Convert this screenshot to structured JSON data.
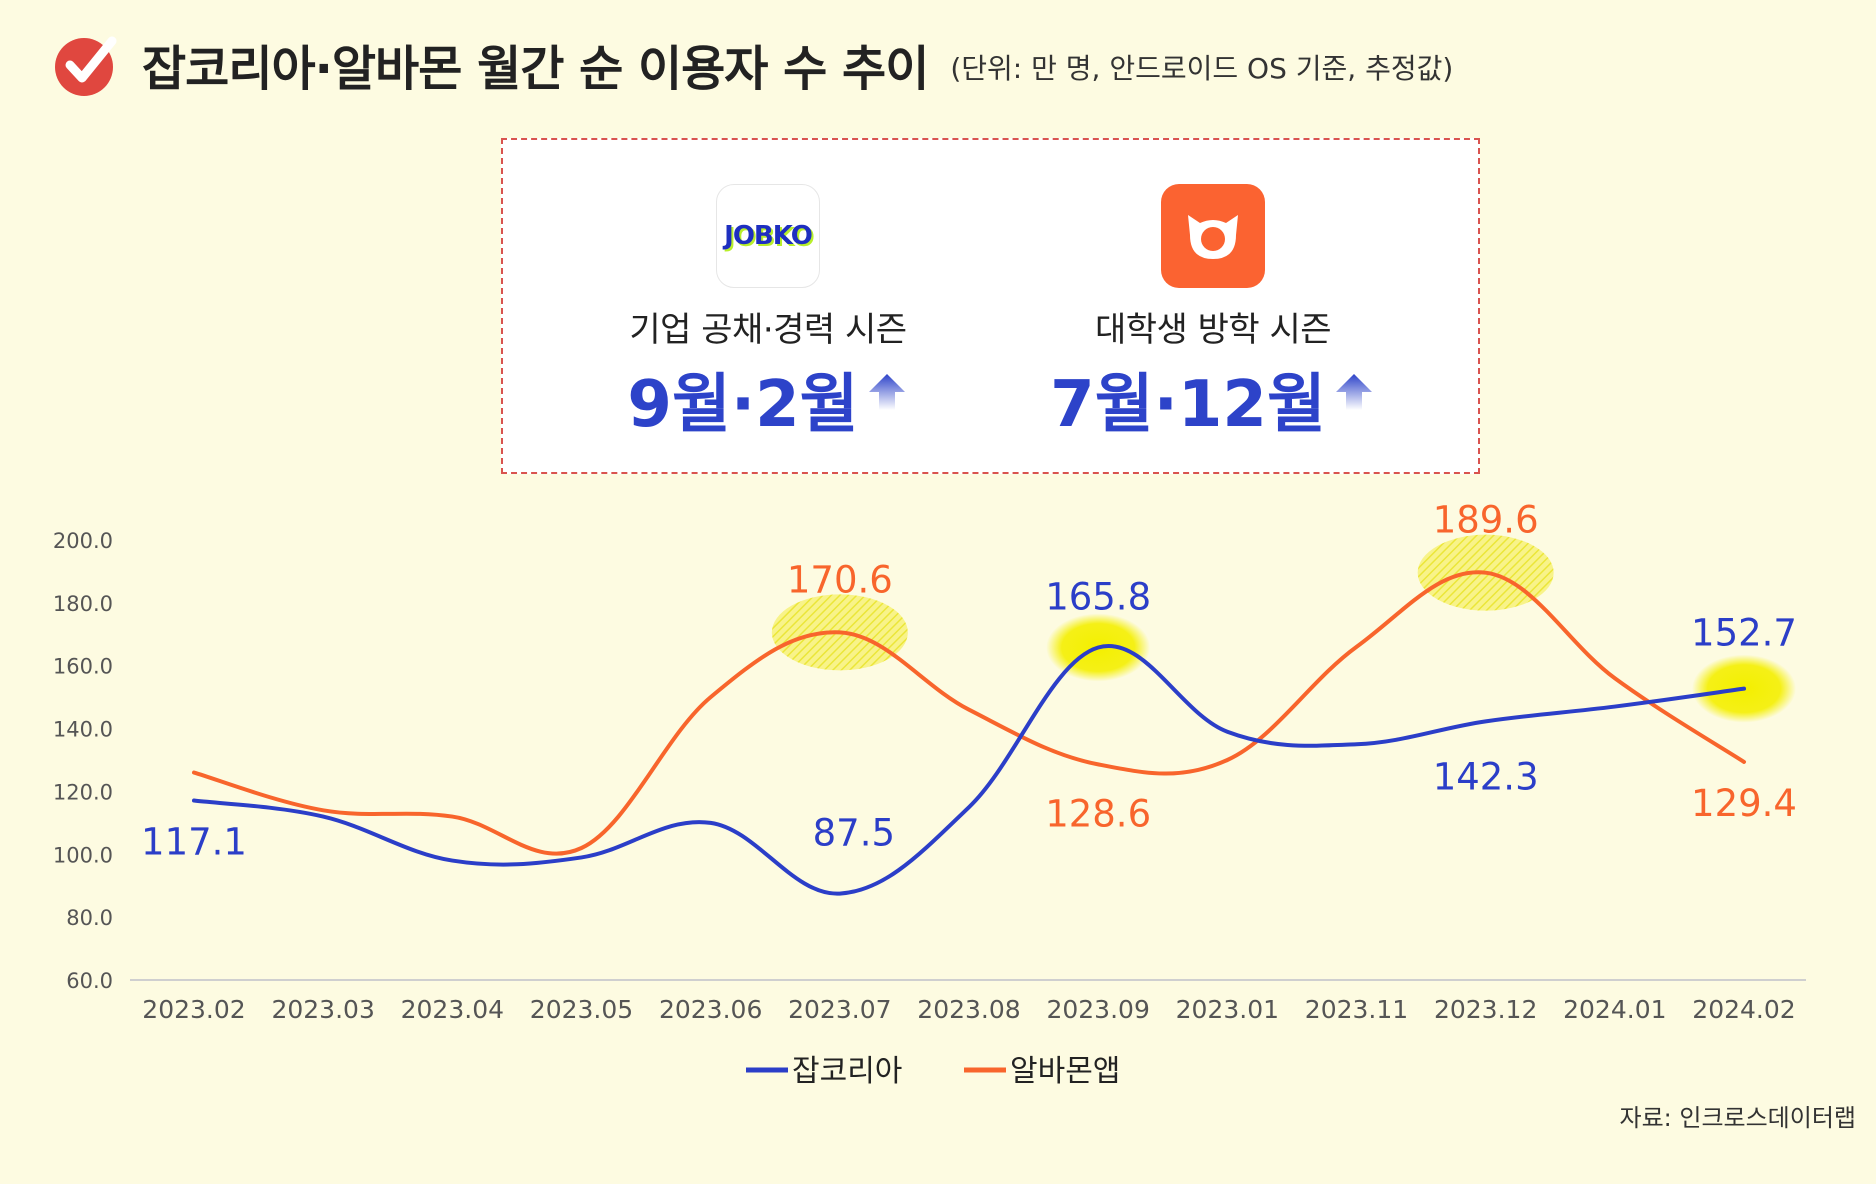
{
  "header": {
    "title": "잡코리아·알바몬 월간 순 이용자 수 추이",
    "subtitle": "(단위: 만 명, 안드로이드 OS 기준, 추정값)",
    "icon": "check-icon"
  },
  "info_box": {
    "left": {
      "logo_text": "JOBKO",
      "season": "기업 공채·경력 시즌",
      "months": "9월·2월",
      "arrow_icon": "up-arrow-icon"
    },
    "right": {
      "logo_icon": "cat-face-icon",
      "season": "대학생 방학 시즌",
      "months": "7월·12월",
      "arrow_icon": "up-arrow-icon"
    }
  },
  "source": "자료: 인크로스데이터랩",
  "colors": {
    "jobkorea": "#2b3ec8",
    "albamon": "#f8652c",
    "highlight": "#f2ef1d",
    "background": "#fdfbe1"
  },
  "chart_data": {
    "type": "line",
    "categories": [
      "2023.02",
      "2023.03",
      "2023.04",
      "2023.05",
      "2023.06",
      "2023.07",
      "2023.08",
      "2023.09",
      "2023.01",
      "2023.11",
      "2023.12",
      "2024.01",
      "2024.02"
    ],
    "ylim": [
      60,
      200
    ],
    "yticks": [
      "200.0",
      "180.0",
      "160.0",
      "140.0",
      "120.0",
      "100.0",
      "80.0",
      "60.0"
    ],
    "legend_position": "bottom",
    "series": [
      {
        "name": "잡코리아",
        "color": "#2b3ec8",
        "values": [
          117.1,
          112,
          98,
          99,
          110,
          87.5,
          115,
          165.8,
          139,
          135,
          142.3,
          147,
          152.7
        ],
        "labels": [
          {
            "index": 0,
            "text": "117.1"
          },
          {
            "index": 5,
            "text": "87.5"
          },
          {
            "index": 7,
            "text": "165.8"
          },
          {
            "index": 10,
            "text": "142.3"
          },
          {
            "index": 12,
            "text": "152.7"
          }
        ]
      },
      {
        "name": "알바몬앱",
        "color": "#f8652c",
        "values": [
          126,
          114,
          112,
          102,
          150,
          170.6,
          146,
          128.6,
          130,
          166,
          189.6,
          156,
          129.4
        ],
        "labels": [
          {
            "index": 5,
            "text": "170.6"
          },
          {
            "index": 7,
            "text": "128.6"
          },
          {
            "index": 10,
            "text": "189.6"
          },
          {
            "index": 12,
            "text": "129.4"
          }
        ]
      }
    ],
    "highlights": [
      {
        "series": 1,
        "index": 5
      },
      {
        "series": 0,
        "index": 7
      },
      {
        "series": 1,
        "index": 10
      },
      {
        "series": 0,
        "index": 12
      }
    ]
  }
}
